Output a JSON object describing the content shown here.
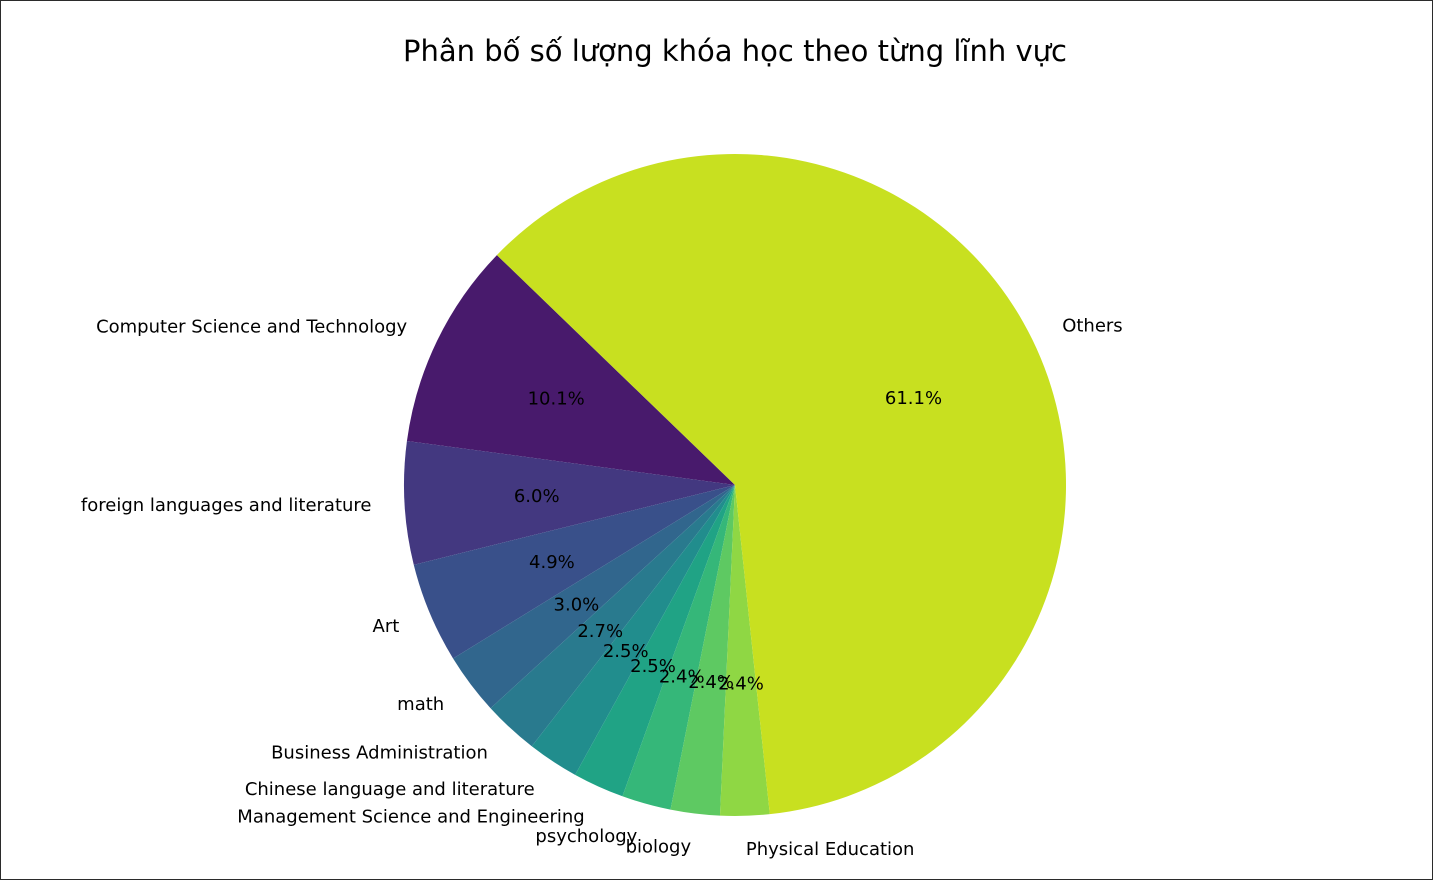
{
  "chart_data": {
    "type": "pie",
    "title": "Phân bố số lượng khóa học theo từng lĩnh vực",
    "start_angle_deg": 136,
    "direction": "counterclockwise",
    "slices": [
      {
        "label": "Computer Science and Technology",
        "value": 10.1,
        "pct_label": "10.1%",
        "color": "#481a6c"
      },
      {
        "label": "foreign languages and literature",
        "value": 6.0,
        "pct_label": "6.0%",
        "color": "#433880"
      },
      {
        "label": "Art",
        "value": 4.9,
        "pct_label": "4.9%",
        "color": "#39508a"
      },
      {
        "label": "math",
        "value": 3.0,
        "pct_label": "3.0%",
        "color": "#31668d"
      },
      {
        "label": "Business Administration",
        "value": 2.7,
        "pct_label": "2.7%",
        "color": "#297a8e"
      },
      {
        "label": "Chinese language and literature",
        "value": 2.5,
        "pct_label": "2.5%",
        "color": "#218d8d"
      },
      {
        "label": "Management Science and Engineering",
        "value": 2.5,
        "pct_label": "2.5%",
        "color": "#20a385"
      },
      {
        "label": "psychology",
        "value": 2.4,
        "pct_label": "2.4%",
        "color": "#35b779"
      },
      {
        "label": "biology",
        "value": 2.4,
        "pct_label": "2.4%",
        "color": "#5ec962"
      },
      {
        "label": "Physical Education",
        "value": 2.4,
        "pct_label": "2.4%",
        "color": "#8fd744"
      },
      {
        "label": "Others",
        "value": 61.1,
        "pct_label": "61.1%",
        "color": "#c8e020"
      }
    ]
  }
}
